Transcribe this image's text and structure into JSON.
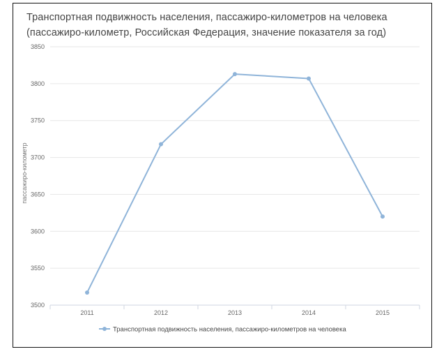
{
  "chart_data": {
    "type": "line",
    "title": "Транспортная подвижность населения, пассажиро-километров на человека",
    "subtitle": "(пассажиро-километр, Российская Федерация, значение показателя за год)",
    "xlabel": "",
    "ylabel": "пассажиро-километр",
    "categories": [
      "2011",
      "2012",
      "2013",
      "2014",
      "2015"
    ],
    "series": [
      {
        "name": "Транспортная подвижность населения, пассажиро-километров на человека",
        "values": [
          3517,
          3718,
          3813,
          3807,
          3620
        ],
        "color": "#8fb4d9"
      }
    ],
    "ylim": [
      3500,
      3850
    ],
    "yticks": [
      "3850",
      "3800",
      "3750",
      "3700",
      "3650",
      "3600",
      "3550",
      "3500"
    ],
    "grid": "horizontal",
    "legend": "bottom-center"
  }
}
